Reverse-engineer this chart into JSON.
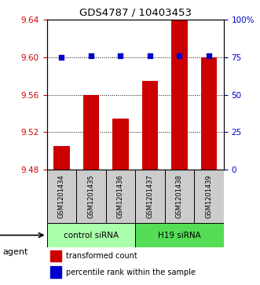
{
  "title": "GDS4787 / 10403453",
  "samples": [
    "GSM1201434",
    "GSM1201435",
    "GSM1201436",
    "GSM1201437",
    "GSM1201438",
    "GSM1201439"
  ],
  "bar_values": [
    9.505,
    9.56,
    9.535,
    9.575,
    9.645,
    9.6
  ],
  "percentile_values": [
    75,
    76,
    76,
    76,
    76,
    76
  ],
  "ymin": 9.48,
  "ymax": 9.64,
  "yticks_left": [
    9.48,
    9.52,
    9.56,
    9.6,
    9.64
  ],
  "yticks_right": [
    0,
    25,
    50,
    75,
    100
  ],
  "ytick_labels_left": [
    "9.48",
    "9.52",
    "9.56",
    "9.60",
    "9.64"
  ],
  "ytick_labels_right": [
    "0",
    "25",
    "50",
    "75",
    "100%"
  ],
  "bar_color": "#cc0000",
  "dot_color": "#0000cc",
  "bar_width": 0.5,
  "groups": [
    {
      "label": "control siRNA",
      "indices": [
        0,
        1,
        2
      ],
      "color": "#aaffaa"
    },
    {
      "label": "H19 siRNA",
      "indices": [
        3,
        4,
        5
      ],
      "color": "#55dd55"
    }
  ],
  "agent_label": "agent",
  "legend_bar_label": "transformed count",
  "legend_dot_label": "percentile rank within the sample",
  "grid_color": "#000000",
  "left_color": "#cc0000",
  "right_color": "#0000cc"
}
